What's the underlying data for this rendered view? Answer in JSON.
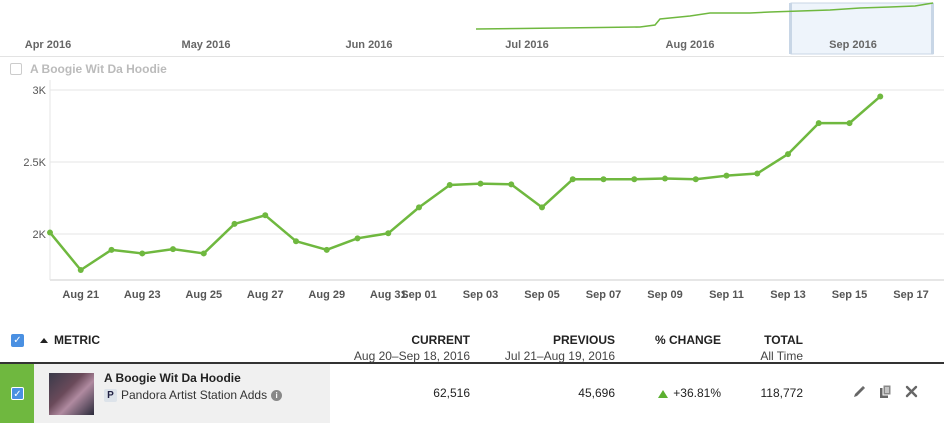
{
  "navigator": {
    "months": [
      "Apr 2016",
      "May 2016",
      "Jun 2016",
      "Jul 2016",
      "Aug 2016",
      "Sep 2016"
    ],
    "colors": {
      "line": "#6fb83f",
      "selection_fill": "#eef4fb",
      "selection_border": "#c8d6e6"
    }
  },
  "series_toggle": {
    "label": "A Boogie Wit Da Hoodie"
  },
  "chart_data": {
    "type": "line",
    "x": [
      "Aug 20",
      "Aug 21",
      "Aug 22",
      "Aug 23",
      "Aug 24",
      "Aug 25",
      "Aug 26",
      "Aug 27",
      "Aug 28",
      "Aug 29",
      "Aug 30",
      "Aug 31",
      "Sep 01",
      "Sep 02",
      "Sep 03",
      "Sep 04",
      "Sep 05",
      "Sep 06",
      "Sep 07",
      "Sep 08",
      "Sep 09",
      "Sep 10",
      "Sep 11",
      "Sep 12",
      "Sep 13",
      "Sep 14",
      "Sep 15",
      "Sep 16"
    ],
    "series": [
      {
        "name": "A Boogie Wit Da Hoodie",
        "color": "#6fb83f",
        "values": [
          2010,
          1750,
          1890,
          1865,
          1895,
          1865,
          2070,
          2130,
          1950,
          1890,
          1970,
          2005,
          2185,
          2340,
          2350,
          2345,
          2185,
          2380,
          2380,
          2380,
          2385,
          2380,
          2405,
          2420,
          2555,
          2770,
          2770,
          2955
        ]
      }
    ],
    "x_tick_labels": [
      "Aug 21",
      "Aug 23",
      "Aug 25",
      "Aug 27",
      "Aug 29",
      "Aug 31",
      "Sep 01",
      "Sep 03",
      "Sep 05",
      "Sep 07",
      "Sep 09",
      "Sep 11",
      "Sep 13",
      "Sep 15",
      "Sep 17"
    ],
    "y_tick_labels": [
      {
        "value": 2000,
        "label": "2K"
      },
      {
        "value": 2500,
        "label": "2.5K"
      },
      {
        "value": 3000,
        "label": "3K"
      }
    ],
    "ylim": [
      1700,
      3000
    ],
    "grid": "horizontal",
    "legend": "none"
  },
  "table": {
    "headers": {
      "metric": "METRIC",
      "current": "CURRENT",
      "current_range": "Aug 20–Sep 18, 2016",
      "previous": "PREVIOUS",
      "previous_range": "Jul 21–Aug 19, 2016",
      "change": "% CHANGE",
      "total": "TOTAL",
      "total_sub": "All Time"
    },
    "rows": [
      {
        "artist": "A Boogie Wit Da Hoodie",
        "source_badge": "P",
        "metric": "Pandora Artist Station Adds",
        "current": "62,516",
        "previous": "45,696",
        "change": "+36.81%",
        "total": "118,772"
      }
    ],
    "icons": [
      "pencil-icon",
      "copy-icon",
      "close-icon"
    ]
  }
}
